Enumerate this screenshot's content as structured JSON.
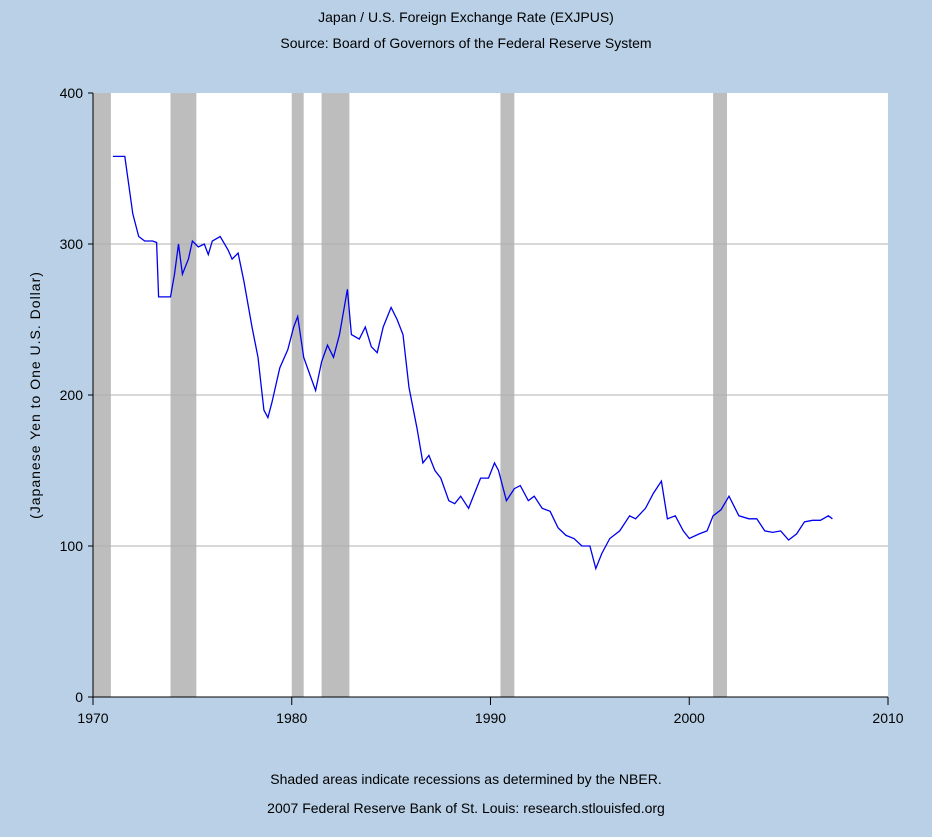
{
  "chart_data": {
    "type": "line",
    "title": "Japan / U.S. Foreign Exchange Rate (EXJPUS)",
    "subtitle": "Source: Board of Governors of the Federal Reserve System",
    "ylabel": "(Japanese Yen to One U.S. Dollar)",
    "notes": [
      "Shaded areas indicate recessions as determined by the NBER.",
      "2007 Federal Reserve Bank of St. Louis: research.stlouisfed.org"
    ],
    "color": "#0000ee",
    "recession_color": "#bdbdbd",
    "grid": true,
    "xlim": [
      1970,
      2010
    ],
    "xticks": [
      1970,
      1980,
      1990,
      2000,
      2010
    ],
    "ylim": [
      0,
      400
    ],
    "yticks": [
      0,
      100,
      200,
      300,
      400
    ],
    "recessions": [
      [
        1969.9,
        1970.9
      ],
      [
        1973.9,
        1975.2
      ],
      [
        1980.0,
        1980.6
      ],
      [
        1981.5,
        1982.9
      ],
      [
        1990.5,
        1991.2
      ],
      [
        2001.2,
        2001.9
      ]
    ],
    "x": [
      1971.0,
      1971.6,
      1972.0,
      1972.3,
      1972.6,
      1973.0,
      1973.2,
      1973.3,
      1973.9,
      1974.1,
      1974.3,
      1974.5,
      1974.8,
      1975.0,
      1975.3,
      1975.6,
      1975.8,
      1976.0,
      1976.4,
      1976.8,
      1977.0,
      1977.3,
      1977.6,
      1978.0,
      1978.3,
      1978.6,
      1978.8,
      1979.0,
      1979.4,
      1979.8,
      1980.1,
      1980.3,
      1980.6,
      1980.9,
      1981.2,
      1981.5,
      1981.8,
      1982.1,
      1982.4,
      1982.8,
      1983.0,
      1983.4,
      1983.7,
      1984.0,
      1984.3,
      1984.6,
      1985.0,
      1985.3,
      1985.6,
      1985.9,
      1986.3,
      1986.6,
      1986.9,
      1987.2,
      1987.5,
      1987.9,
      1988.2,
      1988.5,
      1988.9,
      1989.2,
      1989.5,
      1989.9,
      1990.2,
      1990.4,
      1990.8,
      1991.2,
      1991.5,
      1991.9,
      1992.2,
      1992.6,
      1993.0,
      1993.4,
      1993.8,
      1994.2,
      1994.6,
      1995.0,
      1995.3,
      1995.6,
      1996.0,
      1996.5,
      1997.0,
      1997.3,
      1997.8,
      1998.2,
      1998.6,
      1998.9,
      1999.3,
      1999.7,
      2000.0,
      2000.5,
      2000.9,
      2001.2,
      2001.6,
      2002.0,
      2002.5,
      2003.0,
      2003.4,
      2003.8,
      2004.2,
      2004.6,
      2005.0,
      2005.4,
      2005.8,
      2006.2,
      2006.6,
      2007.0,
      2007.2
    ],
    "values": [
      358,
      358,
      320,
      305,
      302,
      302,
      301,
      265,
      265,
      280,
      300,
      280,
      290,
      302,
      298,
      300,
      293,
      302,
      305,
      296,
      290,
      294,
      275,
      245,
      225,
      190,
      185,
      195,
      218,
      230,
      245,
      252,
      225,
      214,
      203,
      222,
      233,
      225,
      240,
      270,
      240,
      237,
      245,
      232,
      228,
      245,
      258,
      250,
      240,
      205,
      178,
      155,
      160,
      150,
      145,
      130,
      128,
      133,
      125,
      135,
      145,
      145,
      155,
      150,
      130,
      138,
      140,
      130,
      133,
      125,
      123,
      112,
      107,
      105,
      100,
      100,
      85,
      95,
      105,
      110,
      120,
      118,
      125,
      135,
      143,
      118,
      120,
      110,
      105,
      108,
      110,
      120,
      124,
      133,
      120,
      118,
      118,
      110,
      109,
      110,
      104,
      108,
      116,
      117,
      117,
      120,
      118
    ]
  }
}
